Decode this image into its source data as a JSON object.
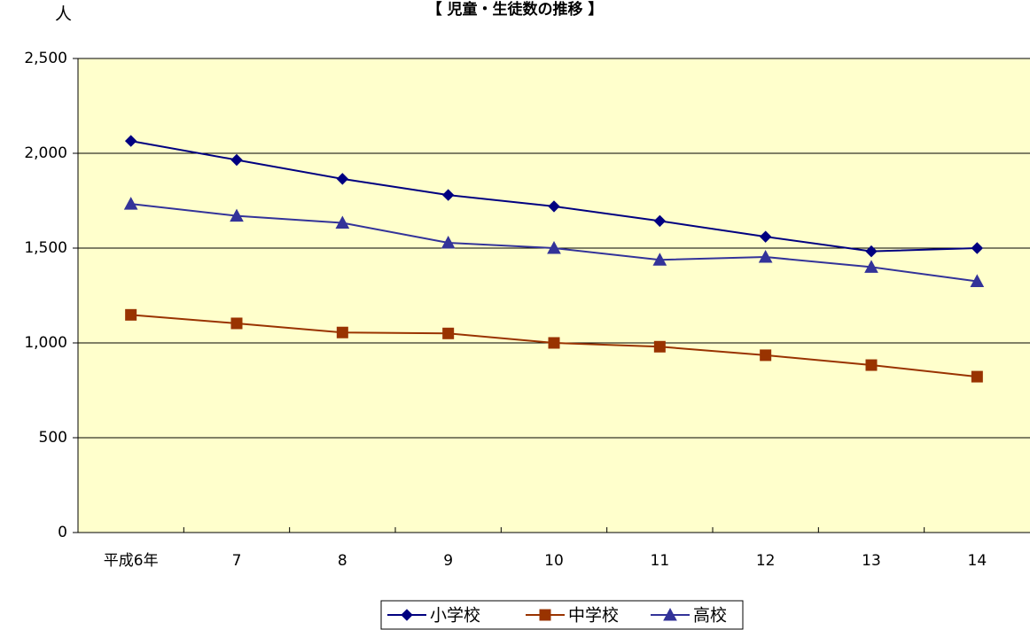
{
  "chart_data": {
    "type": "line",
    "title": "【 児童・生徒数の推移 】",
    "ylabel": "人",
    "xlabel": "",
    "categories": [
      "平成6年",
      "7",
      "8",
      "9",
      "10",
      "11",
      "12",
      "13",
      "14"
    ],
    "ylim": [
      0,
      2500
    ],
    "yticks": [
      0,
      500,
      1000,
      1500,
      2000,
      2500
    ],
    "ytick_labels": [
      "0",
      "500",
      "1,000",
      "1,500",
      "2,000",
      "2,500"
    ],
    "grid": true,
    "legend_position": "bottom",
    "plot_background": "#FFFFCC",
    "series": [
      {
        "name": "小学校",
        "color": "#000080",
        "marker": "diamond",
        "values": [
          2065,
          1965,
          1865,
          1780,
          1720,
          1643,
          1560,
          1483,
          1500
        ]
      },
      {
        "name": "中学校",
        "color": "#993300",
        "marker": "square",
        "values": [
          1148,
          1103,
          1055,
          1050,
          1000,
          980,
          935,
          883,
          822
        ]
      },
      {
        "name": "高校",
        "color": "#333399",
        "marker": "triangle",
        "values": [
          1733,
          1670,
          1633,
          1528,
          1500,
          1438,
          1453,
          1400,
          1325
        ]
      }
    ]
  }
}
